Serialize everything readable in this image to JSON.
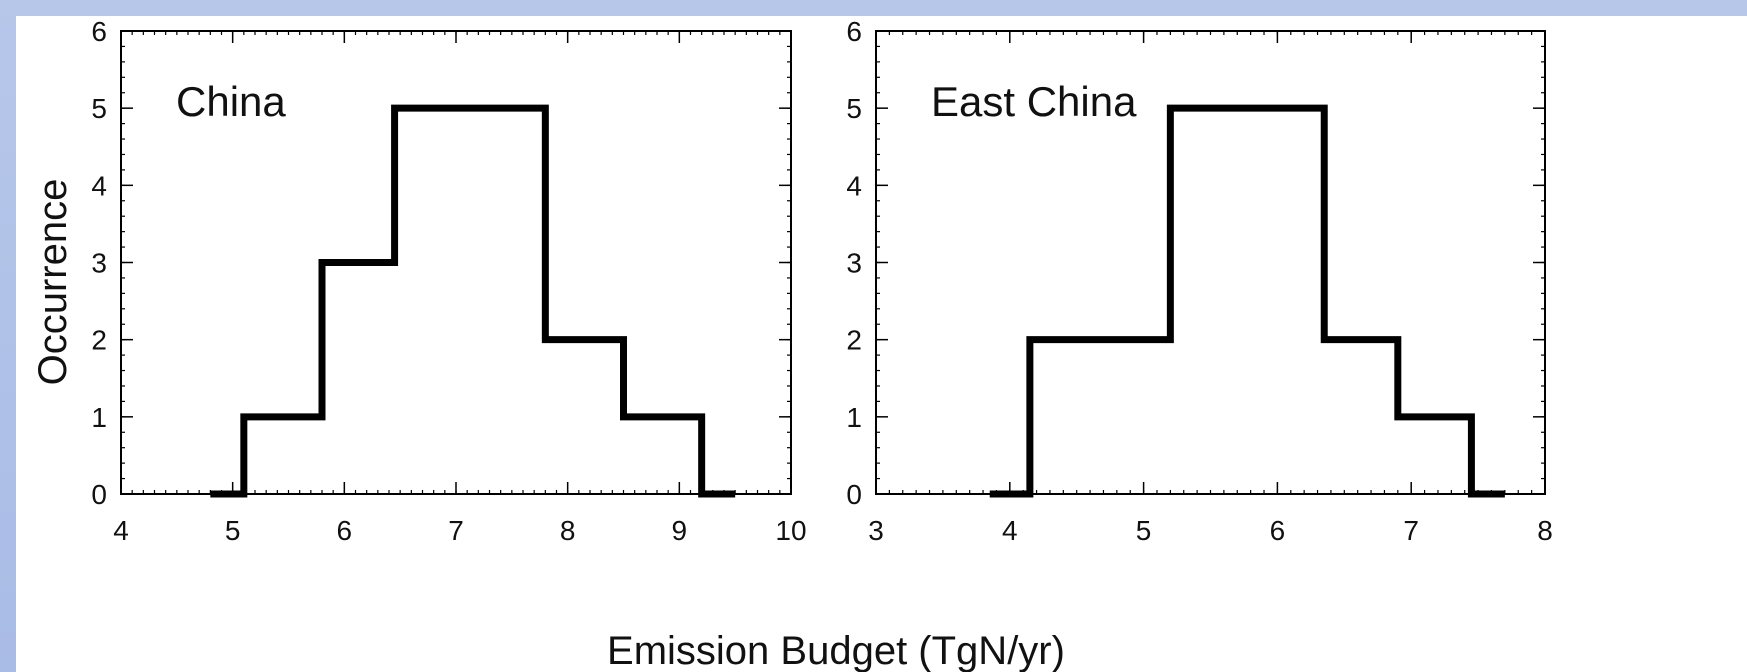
{
  "figure": {
    "ylabel": "Occurrence",
    "xlabel": "Emission Budget (TgN/yr)"
  },
  "chart_data": [
    {
      "type": "histogram",
      "panel_label": "China",
      "xlabel": "Emission Budget (TgN/yr)",
      "ylabel": "Occurrence",
      "xlim": [
        4,
        10
      ],
      "ylim": [
        0,
        6
      ],
      "xticks": [
        "4",
        "5",
        "6",
        "7",
        "8",
        "9",
        "10"
      ],
      "yticks": [
        "0",
        "1",
        "2",
        "3",
        "4",
        "5",
        "6"
      ],
      "bin_edges": [
        4.8,
        5.1,
        5.8,
        6.45,
        7.8,
        8.5,
        9.2,
        9.5
      ],
      "values": [
        0,
        1,
        3,
        5,
        2,
        1,
        0
      ]
    },
    {
      "type": "histogram",
      "panel_label": "East China",
      "xlabel": "Emission Budget (TgN/yr)",
      "ylabel": "",
      "xlim": [
        3,
        8
      ],
      "ylim": [
        0,
        6
      ],
      "xticks": [
        "3",
        "4",
        "5",
        "6",
        "7",
        "8"
      ],
      "yticks": [
        "0",
        "1",
        "2",
        "3",
        "4",
        "5",
        "6"
      ],
      "bin_edges": [
        3.85,
        4.15,
        5.2,
        6.35,
        6.9,
        7.45,
        7.7
      ],
      "values": [
        0,
        2,
        5,
        2,
        1,
        0
      ]
    }
  ]
}
